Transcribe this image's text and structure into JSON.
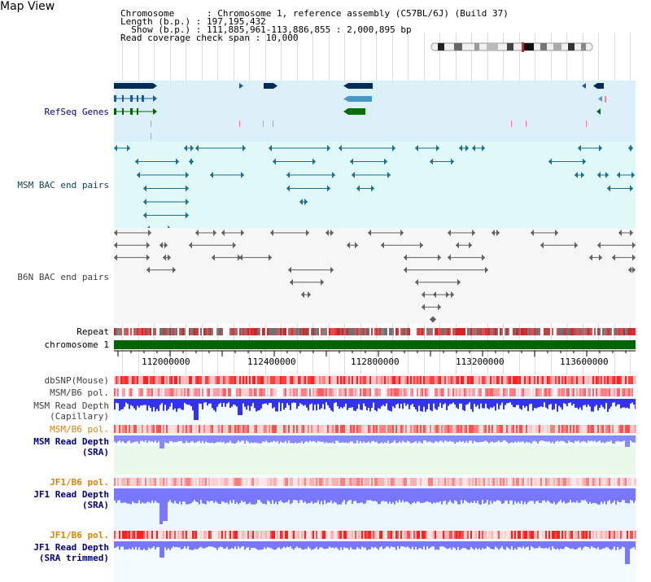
{
  "header": {
    "title": "Map View",
    "chromosome_line": "Chromosome      : Chromosome 1, reference assembly (C57BL/6J) (Build 37)",
    "length_line": "Length (b.p.) : 197,195,432",
    "show_line": "  Show (b.p.) : 111,885,961-113,886,855 : 2,000,895 bp",
    "span_line": "Read coverage check span : 10,000"
  },
  "tracks": {
    "refseq": "RefSeq Genes",
    "msm_bac": "MSM BAC end pairs",
    "b6n_bac": "B6N BAC end pairs",
    "repeat": "Repeat",
    "chromosome": "chromosome 1",
    "dbsnp": "dbSNP(Mouse)",
    "msm_b6_pol": "MSM/B6 pol.",
    "msm_read_depth_cap_1": "MSM Read Depth",
    "msm_read_depth_cap_2": "(Capillary)",
    "msm_b6_pol_2": "MSM/B6 pol.",
    "msm_read_depth_sra_1": "MSM Read Depth",
    "msm_read_depth_sra_2": "(SRA)",
    "jf1_b6_pol": "JF1/B6 pol.",
    "jf1_read_depth_1": "JF1 Read Depth",
    "jf1_read_depth_2": "(SRA)",
    "jf1_b6_pol_2": "JF1/B6 pol.",
    "jf1_read_depth_trim_1": "JF1 Read Depth",
    "jf1_read_depth_trim_2": "(SRA trimmed)"
  },
  "axis": {
    "ticks": [
      "112000000",
      "112400000",
      "112800000",
      "113200000",
      "113600000"
    ]
  },
  "colors": {
    "navy_label": "#000080",
    "orange_label": "#e08000",
    "gray_label": "#404040",
    "refseq_bg": "#dcf0fa",
    "msm_bg": "#e0f8f8",
    "b6n_bg": "#f8f8f8",
    "chrom_green": "#006400",
    "depth_blue": "#3333ff",
    "sra_blue": "#8888ff"
  }
}
